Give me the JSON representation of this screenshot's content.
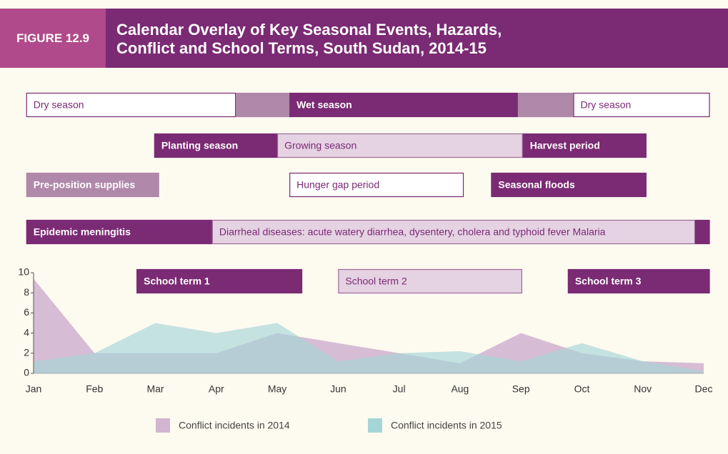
{
  "header": {
    "label": "FIGURE 12.9",
    "title": "Calendar Overlay of Key Seasonal Events, Hazards, Conflict and School Terms, South Sudan, 2014-15"
  },
  "chart_data": {
    "type": "area",
    "categories": [
      "Jan",
      "Feb",
      "Mar",
      "Apr",
      "May",
      "Jun",
      "Jul",
      "Aug",
      "Sep",
      "Oct",
      "Nov",
      "Dec"
    ],
    "series": [
      {
        "name": "Conflict incidents in 2014",
        "color": "#d2b5d0",
        "values": [
          9.4,
          2,
          2,
          2,
          4,
          3,
          2,
          1,
          4,
          2,
          1.2,
          1
        ]
      },
      {
        "name": "Conflict incidents in 2015",
        "color": "#a6d5d7",
        "values": [
          1.2,
          2,
          5,
          4,
          5,
          1.2,
          2,
          2.2,
          1.2,
          3,
          1.2,
          0.2
        ]
      }
    ],
    "ylim": [
      0,
      10
    ],
    "yticks": [
      0,
      2,
      4,
      6,
      8,
      10
    ],
    "legend": "bottom",
    "timeline": {
      "rows": [
        [
          {
            "label": "Dry season",
            "start": -0.12,
            "end": 3.32,
            "style": "white"
          },
          {
            "start": 3.32,
            "end": 4.2,
            "style": "medium"
          },
          {
            "label": "Wet season",
            "start": 4.2,
            "end": 7.95,
            "style": "dark"
          },
          {
            "start": 7.95,
            "end": 8.86,
            "style": "medium"
          },
          {
            "label": "Dry season",
            "start": 8.86,
            "end": 11.1,
            "style": "white"
          }
        ],
        [
          {
            "label": "Planting season",
            "start": 1.98,
            "end": 4.0,
            "style": "dark"
          },
          {
            "label": "Growing season",
            "start": 4.0,
            "end": 8.03,
            "style": "light"
          },
          {
            "label": "Harvest period",
            "start": 8.03,
            "end": 10.06,
            "style": "dark"
          }
        ],
        [
          {
            "label": "Pre-position supplies",
            "start": -0.12,
            "end": 2.06,
            "style": "medium"
          },
          {
            "label": "Hunger gap period",
            "start": 4.2,
            "end": 7.06,
            "style": "white"
          },
          {
            "label": "Seasonal floods",
            "start": 7.51,
            "end": 10.06,
            "style": "dark"
          }
        ],
        [
          {
            "label": "Epidemic meningitis",
            "start": -0.12,
            "end": 2.93,
            "style": "dark"
          },
          {
            "label": "Diarrheal diseases: acute watery diarrhea, dysentery, cholera and typhoid fever Malaria",
            "start": 2.93,
            "end": 10.86,
            "style": "light"
          },
          {
            "start": 10.86,
            "end": 11.1,
            "style": "dark"
          }
        ],
        [
          {
            "label": "School term 1",
            "start": 1.69,
            "end": 4.41,
            "style": "dark"
          },
          {
            "label": "School term 2",
            "start": 5.0,
            "end": 8.02,
            "style": "light"
          },
          {
            "label": "School term 3",
            "start": 8.77,
            "end": 11.1,
            "style": "dark"
          }
        ]
      ]
    }
  }
}
